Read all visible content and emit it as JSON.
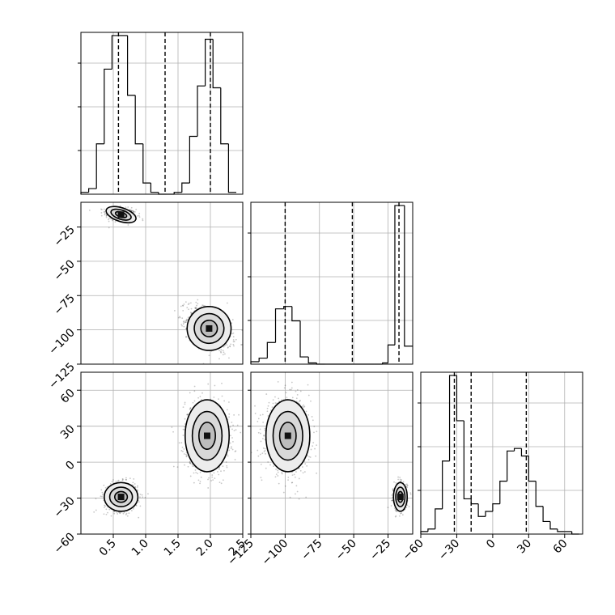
{
  "chart_data": {
    "type": "corner",
    "title": "",
    "parameters": [
      {
        "label": "",
        "range": [
          0,
          2.5
        ],
        "ticks": [
          "0.5",
          "1.0",
          "1.5",
          "2.0",
          "2.5"
        ],
        "tick_values": [
          0.5,
          1.0,
          1.5,
          2.0,
          2.5
        ]
      },
      {
        "label": "",
        "range": [
          -125,
          -7
        ],
        "ticks": [
          "−125",
          "−100",
          "−75",
          "−50",
          "−25"
        ],
        "tick_values": [
          -125,
          -100,
          -75,
          -50,
          -25
        ]
      },
      {
        "label": "",
        "range": [
          -60,
          75
        ],
        "ticks": [
          "−60",
          "−30",
          "0",
          "30",
          "60"
        ],
        "tick_values": [
          -60,
          -30,
          0,
          30,
          60
        ]
      }
    ],
    "marginals": [
      {
        "param": 0,
        "bin_edges": [
          0.0,
          0.12,
          0.24,
          0.36,
          0.48,
          0.6,
          0.72,
          0.84,
          0.96,
          1.08,
          1.2,
          1.32,
          1.44,
          1.56,
          1.68,
          1.8,
          1.92,
          2.04,
          2.16,
          2.28,
          2.4
        ],
        "counts": [
          1,
          3,
          27,
          67,
          85,
          85,
          53,
          27,
          6,
          1,
          0,
          0,
          1,
          6,
          31,
          58,
          83,
          57,
          27,
          1
        ],
        "quantiles": [
          0.58,
          1.3,
          2.0
        ]
      },
      {
        "param": 1,
        "bin_edges": [
          -125,
          -119,
          -113,
          -107,
          -101,
          -95,
          -89,
          -83,
          -77,
          -71,
          -65,
          -59,
          -53,
          -47,
          -41,
          -35,
          -29,
          -25,
          -20,
          -13,
          -7
        ],
        "counts": [
          2,
          5,
          18,
          46,
          48,
          36,
          6,
          1,
          0,
          0,
          0,
          0,
          0,
          0,
          0,
          0,
          1,
          16,
          132,
          15
        ],
        "quantiles": [
          -100,
          -51,
          -17
        ]
      },
      {
        "param": 2,
        "bin_edges": [
          -60,
          -54,
          -48,
          -42,
          -36,
          -30,
          -24,
          -18,
          -12,
          -6,
          0,
          6,
          12,
          18,
          24,
          30,
          36,
          42,
          48,
          54,
          60,
          66,
          72
        ],
        "counts": [
          1,
          2,
          10,
          29,
          63,
          45,
          14,
          12,
          7,
          9,
          12,
          21,
          33,
          34,
          31,
          21,
          11,
          5,
          2,
          1,
          1,
          0
        ],
        "quantiles": [
          -32,
          -18,
          28
        ]
      }
    ],
    "joint": [
      {
        "x_param": 0,
        "y_param": 1,
        "modes": [
          {
            "center": [
              0.62,
              -16
            ],
            "sd": [
              0.12,
              2.5
            ],
            "rho": -0.2,
            "n": 420
          },
          {
            "center": [
              1.98,
              -99
            ],
            "sd": [
              0.17,
              8
            ],
            "rho": -0.45,
            "n": 700
          }
        ]
      },
      {
        "x_param": 0,
        "y_param": 2,
        "modes": [
          {
            "center": [
              0.62,
              -29
            ],
            "sd": [
              0.13,
              6
            ],
            "rho": 0.0,
            "n": 600
          },
          {
            "center": [
              1.95,
              22
            ],
            "sd": [
              0.17,
              15
            ],
            "rho": 0.0,
            "n": 900
          }
        ]
      },
      {
        "x_param": 1,
        "y_param": 2,
        "modes": [
          {
            "center": [
              -98,
              22
            ],
            "sd": [
              8,
              15
            ],
            "rho": 0.0,
            "n": 900
          },
          {
            "center": [
              -16,
              -29
            ],
            "sd": [
              2.5,
              6
            ],
            "rho": 0.0,
            "n": 420
          }
        ]
      }
    ],
    "grid": true,
    "legend": "none"
  }
}
